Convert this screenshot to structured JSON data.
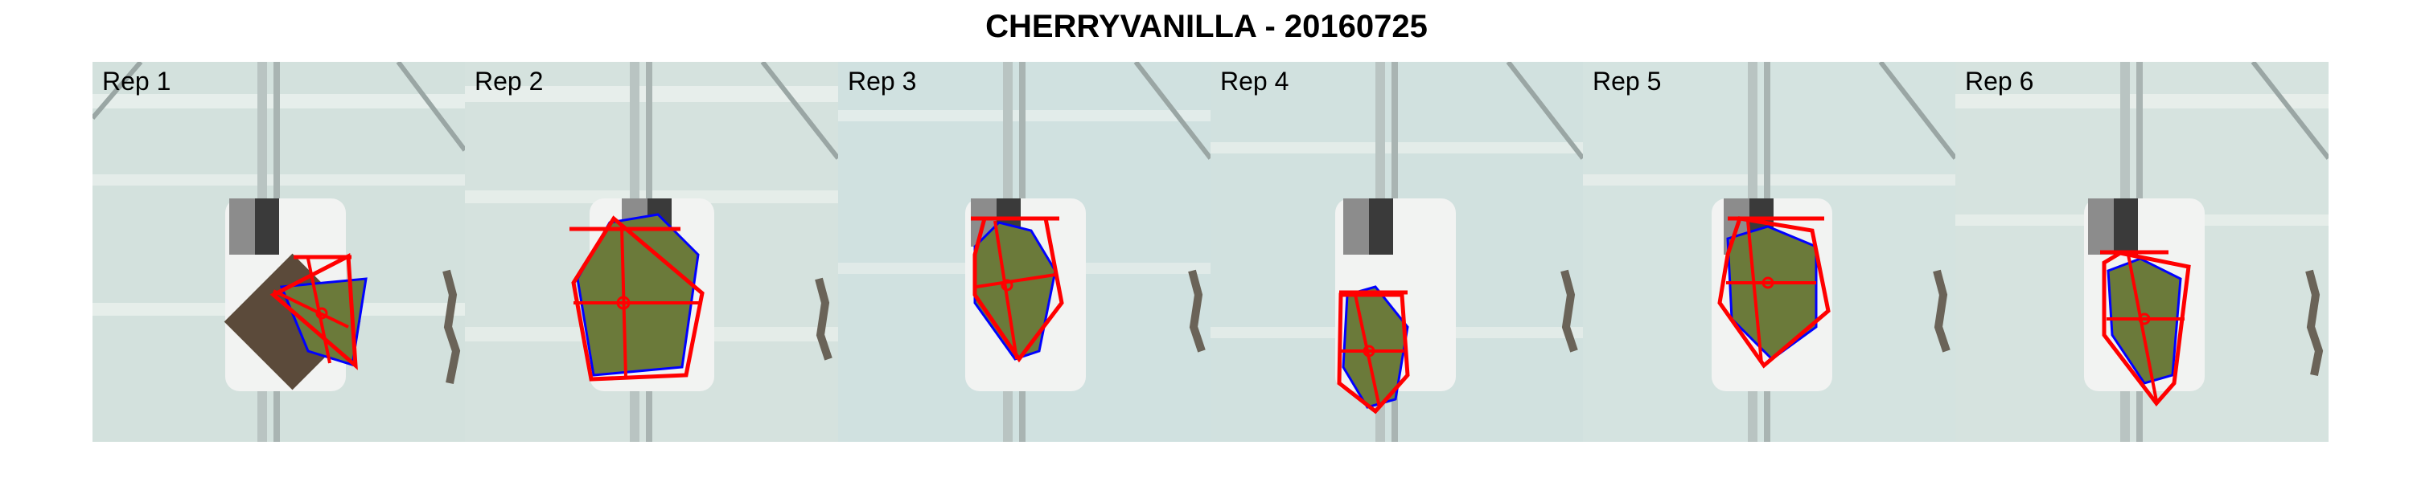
{
  "title": "CHERRYVANILLA - 20160725",
  "panels": [
    {
      "label": "Rep 1"
    },
    {
      "label": "Rep 2"
    },
    {
      "label": "Rep 3"
    },
    {
      "label": "Rep 4"
    },
    {
      "label": "Rep 5"
    },
    {
      "label": "Rep 6"
    }
  ],
  "colors": {
    "hull": "#ff0000",
    "leaf_outline": "#0000ff",
    "leaf_fill": "#6b7a3a",
    "background": "#d6e4e0"
  }
}
